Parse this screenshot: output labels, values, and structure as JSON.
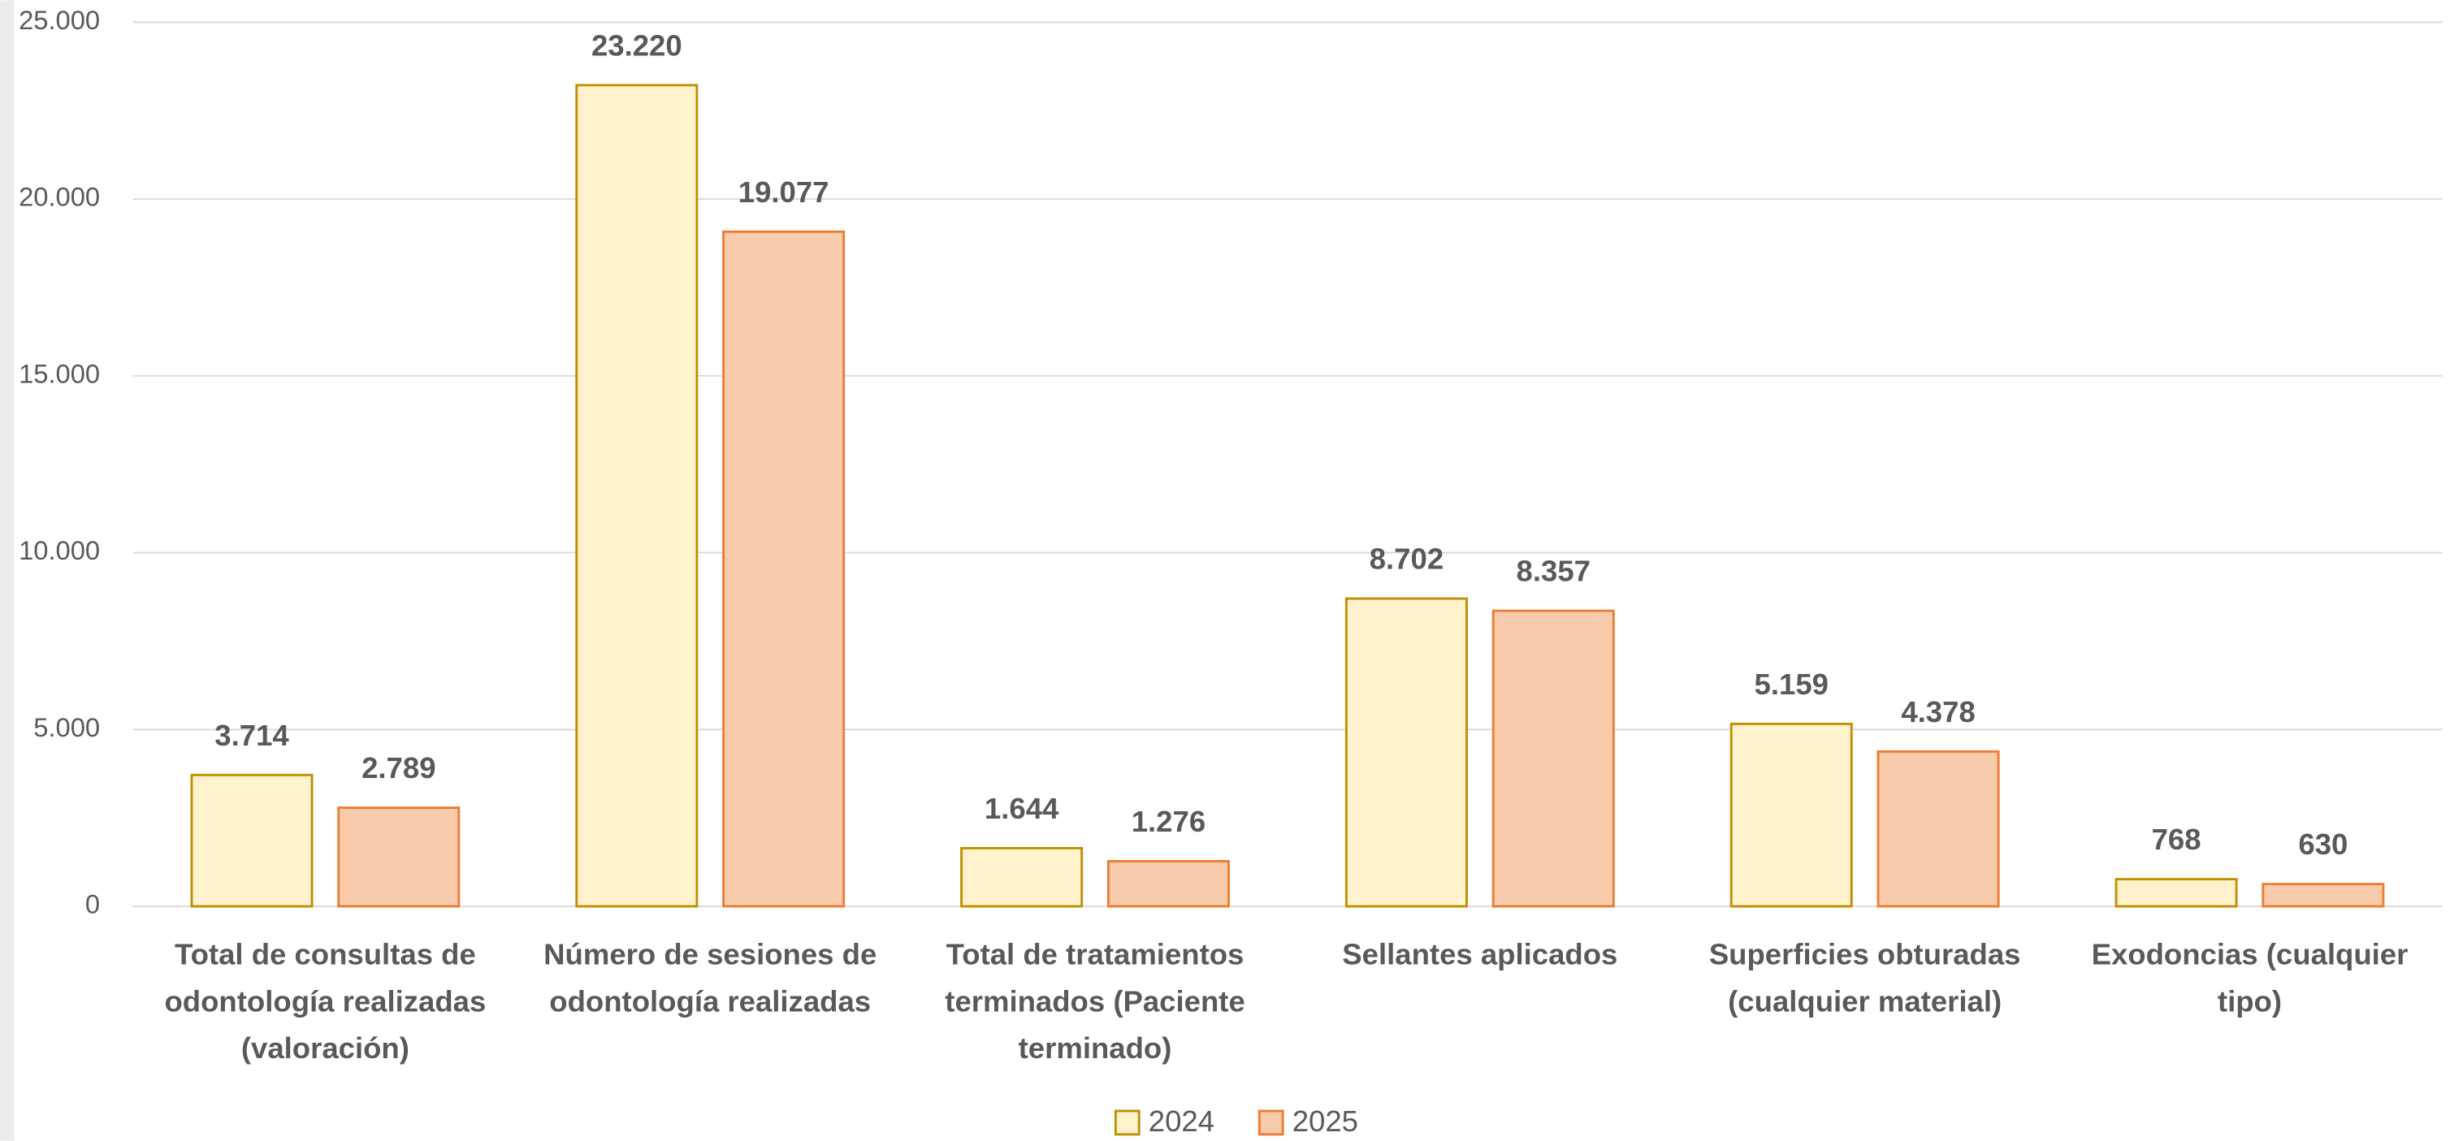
{
  "chart_data": {
    "type": "bar",
    "categories": [
      "Total de consultas de odontología realizadas (valoración)",
      "Número de sesiones de odontología realizadas",
      "Total de tratamientos terminados (Paciente terminado)",
      "Sellantes aplicados",
      "Superficies obturadas (cualquier material)",
      "Exodoncias (cualquier tipo)"
    ],
    "series": [
      {
        "name": "2024",
        "color": "#fff2cc",
        "stroke": "#bf9000",
        "values": [
          3714,
          23220,
          1644,
          8702,
          5159,
          768
        ],
        "value_labels": [
          "3.714",
          "23.220",
          "1.644",
          "8.702",
          "5.159",
          "768"
        ]
      },
      {
        "name": "2025",
        "color": "#f8cbad",
        "stroke": "#ed7d31",
        "values": [
          2789,
          19077,
          1276,
          8357,
          4378,
          630
        ],
        "value_labels": [
          "2.789",
          "19.077",
          "1.276",
          "8.357",
          "4.378",
          "630"
        ]
      }
    ],
    "ylim": [
      0,
      25000
    ],
    "yticks": [
      0,
      {
        "value": 5000,
        "label": "5.000"
      },
      {
        "value": 10000,
        "label": "10.000"
      },
      {
        "value": 15000,
        "label": "15.000"
      },
      {
        "value": 20000,
        "label": "20.000"
      },
      {
        "value": 25000,
        "label": "25.000"
      }
    ],
    "grid": true,
    "legend": "bottom"
  }
}
